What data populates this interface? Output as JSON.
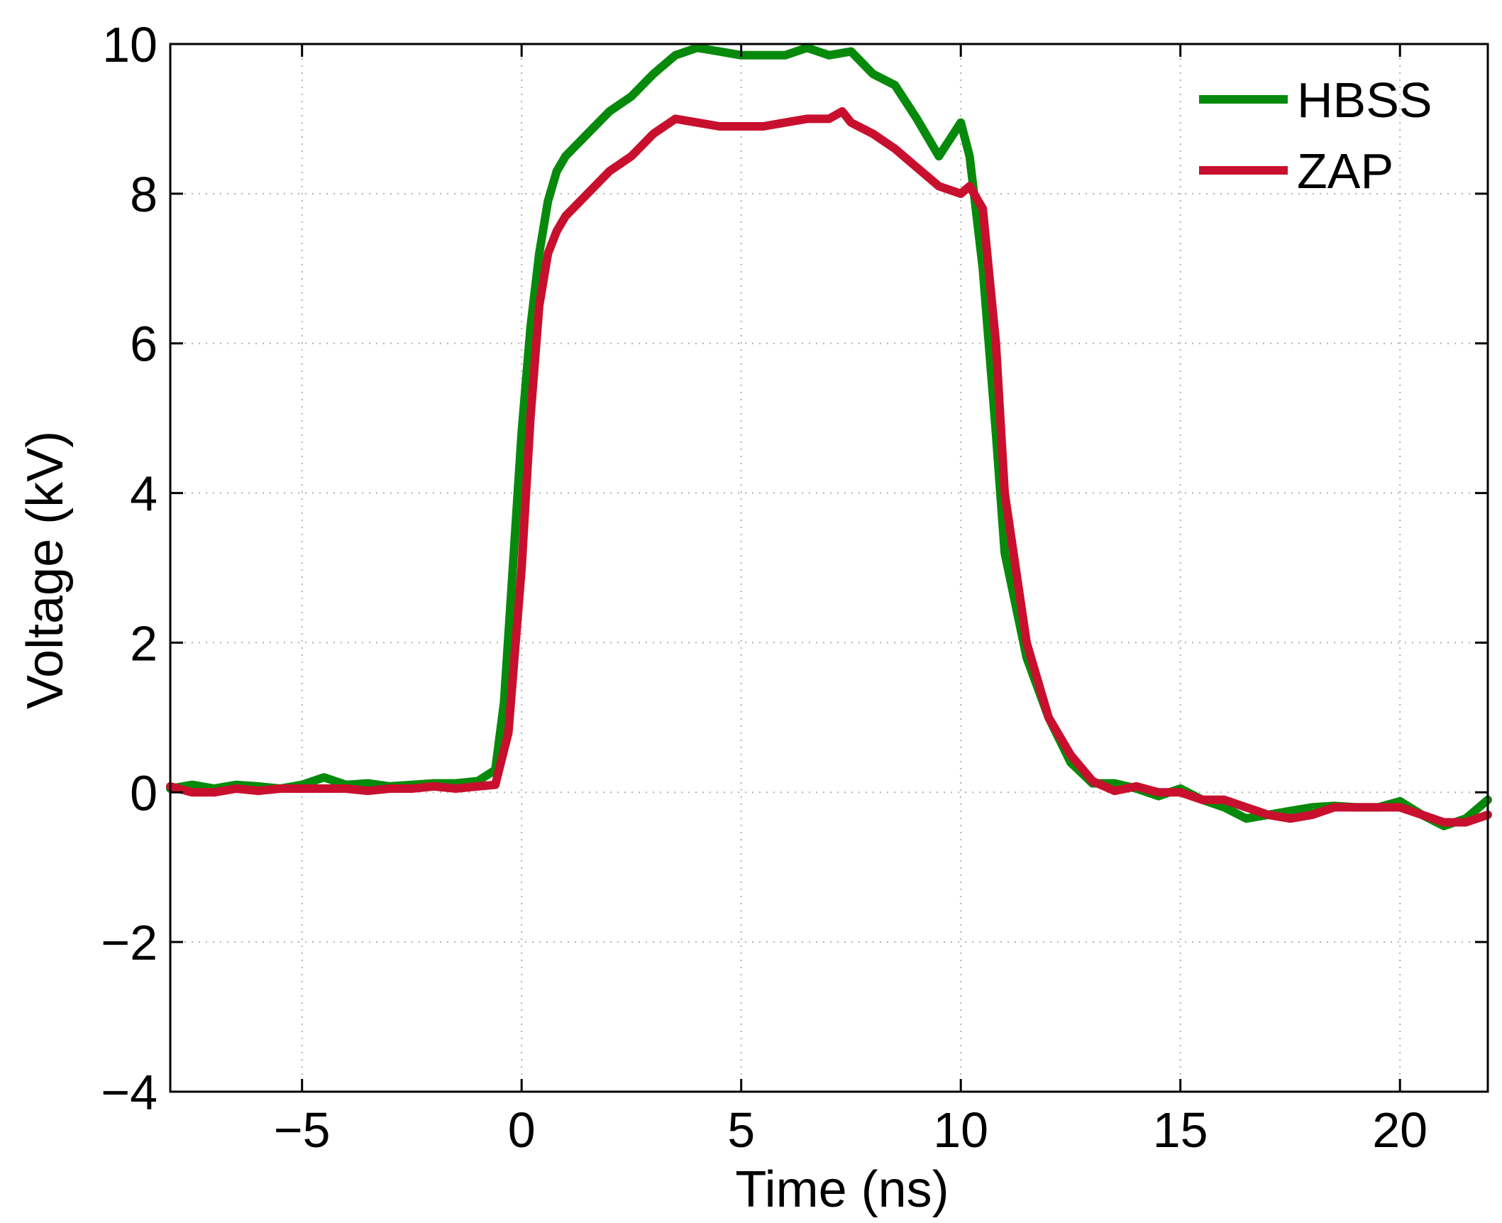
{
  "chart_data": {
    "type": "line",
    "xlabel": "Time (ns)",
    "ylabel": "Voltage (kV)",
    "xlim": [
      -8,
      22
    ],
    "ylim": [
      -4,
      10
    ],
    "xticks": [
      -5,
      0,
      5,
      10,
      15,
      20
    ],
    "yticks": [
      -4,
      -2,
      0,
      2,
      4,
      6,
      8,
      10
    ],
    "xtick_labels": [
      "−5",
      "0",
      "5",
      "10",
      "15",
      "20"
    ],
    "ytick_labels": [
      "−4",
      "−2",
      "0",
      "2",
      "4",
      "6",
      "8",
      "10"
    ],
    "grid": true,
    "legend_position": "top-right",
    "series": [
      {
        "name": "HBSS",
        "color": "#078a0b",
        "points": [
          [
            -8,
            0.05
          ],
          [
            -7.5,
            0.1
          ],
          [
            -7,
            0.05
          ],
          [
            -6.5,
            0.1
          ],
          [
            -6,
            0.08
          ],
          [
            -5.5,
            0.05
          ],
          [
            -5,
            0.1
          ],
          [
            -4.5,
            0.2
          ],
          [
            -4,
            0.1
          ],
          [
            -3.5,
            0.12
          ],
          [
            -3,
            0.08
          ],
          [
            -2.5,
            0.1
          ],
          [
            -2,
            0.12
          ],
          [
            -1.5,
            0.12
          ],
          [
            -1,
            0.15
          ],
          [
            -0.6,
            0.3
          ],
          [
            -0.4,
            1.2
          ],
          [
            -0.2,
            3.0
          ],
          [
            0,
            4.8
          ],
          [
            0.2,
            6.2
          ],
          [
            0.4,
            7.2
          ],
          [
            0.6,
            7.9
          ],
          [
            0.8,
            8.3
          ],
          [
            1,
            8.5
          ],
          [
            1.5,
            8.8
          ],
          [
            2,
            9.1
          ],
          [
            2.5,
            9.3
          ],
          [
            3,
            9.6
          ],
          [
            3.5,
            9.85
          ],
          [
            4,
            9.95
          ],
          [
            4.5,
            9.9
          ],
          [
            5,
            9.85
          ],
          [
            5.5,
            9.85
          ],
          [
            6,
            9.85
          ],
          [
            6.5,
            9.95
          ],
          [
            7,
            9.85
          ],
          [
            7.5,
            9.9
          ],
          [
            8,
            9.6
          ],
          [
            8.5,
            9.45
          ],
          [
            9,
            9.0
          ],
          [
            9.5,
            8.5
          ],
          [
            10,
            8.95
          ],
          [
            10.2,
            8.5
          ],
          [
            10.5,
            7.0
          ],
          [
            10.8,
            4.8
          ],
          [
            11,
            3.2
          ],
          [
            11.5,
            1.8
          ],
          [
            12,
            1.0
          ],
          [
            12.5,
            0.4
          ],
          [
            13,
            0.12
          ],
          [
            13.5,
            0.12
          ],
          [
            14,
            0.05
          ],
          [
            14.5,
            -0.05
          ],
          [
            15,
            0.05
          ],
          [
            15.5,
            -0.1
          ],
          [
            16,
            -0.2
          ],
          [
            16.5,
            -0.35
          ],
          [
            17,
            -0.3
          ],
          [
            17.5,
            -0.25
          ],
          [
            18,
            -0.2
          ],
          [
            18.5,
            -0.18
          ],
          [
            19,
            -0.2
          ],
          [
            19.5,
            -0.2
          ],
          [
            20,
            -0.12
          ],
          [
            20.5,
            -0.3
          ],
          [
            21,
            -0.45
          ],
          [
            21.5,
            -0.35
          ],
          [
            22,
            -0.1
          ]
        ]
      },
      {
        "name": "ZAP",
        "color": "#c8102e",
        "points": [
          [
            -8,
            0.08
          ],
          [
            -7.5,
            0.0
          ],
          [
            -7,
            0.0
          ],
          [
            -6.5,
            0.05
          ],
          [
            -6,
            0.02
          ],
          [
            -5.5,
            0.05
          ],
          [
            -5,
            0.05
          ],
          [
            -4.5,
            0.05
          ],
          [
            -4,
            0.05
          ],
          [
            -3.5,
            0.02
          ],
          [
            -3,
            0.05
          ],
          [
            -2.5,
            0.05
          ],
          [
            -2,
            0.08
          ],
          [
            -1.5,
            0.05
          ],
          [
            -1,
            0.08
          ],
          [
            -0.6,
            0.1
          ],
          [
            -0.3,
            0.8
          ],
          [
            0,
            3.0
          ],
          [
            0.2,
            5.0
          ],
          [
            0.4,
            6.5
          ],
          [
            0.6,
            7.2
          ],
          [
            0.8,
            7.5
          ],
          [
            1,
            7.7
          ],
          [
            1.5,
            8.0
          ],
          [
            2,
            8.3
          ],
          [
            2.5,
            8.5
          ],
          [
            3,
            8.8
          ],
          [
            3.5,
            9.0
          ],
          [
            4,
            8.95
          ],
          [
            4.5,
            8.9
          ],
          [
            5,
            8.9
          ],
          [
            5.5,
            8.9
          ],
          [
            6,
            8.95
          ],
          [
            6.5,
            9.0
          ],
          [
            7,
            9.0
          ],
          [
            7.3,
            9.1
          ],
          [
            7.5,
            8.95
          ],
          [
            8,
            8.8
          ],
          [
            8.5,
            8.6
          ],
          [
            9,
            8.35
          ],
          [
            9.5,
            8.1
          ],
          [
            10,
            8.0
          ],
          [
            10.2,
            8.1
          ],
          [
            10.5,
            7.8
          ],
          [
            10.8,
            6.0
          ],
          [
            11,
            4.0
          ],
          [
            11.5,
            2.0
          ],
          [
            12,
            1.0
          ],
          [
            12.5,
            0.5
          ],
          [
            13,
            0.15
          ],
          [
            13.5,
            0.02
          ],
          [
            14,
            0.08
          ],
          [
            14.5,
            0.0
          ],
          [
            15,
            0.0
          ],
          [
            15.5,
            -0.1
          ],
          [
            16,
            -0.1
          ],
          [
            16.5,
            -0.2
          ],
          [
            17,
            -0.3
          ],
          [
            17.5,
            -0.35
          ],
          [
            18,
            -0.3
          ],
          [
            18.5,
            -0.2
          ],
          [
            19,
            -0.2
          ],
          [
            19.5,
            -0.2
          ],
          [
            20,
            -0.2
          ],
          [
            20.5,
            -0.3
          ],
          [
            21,
            -0.4
          ],
          [
            21.5,
            -0.4
          ],
          [
            22,
            -0.3
          ]
        ]
      }
    ]
  }
}
